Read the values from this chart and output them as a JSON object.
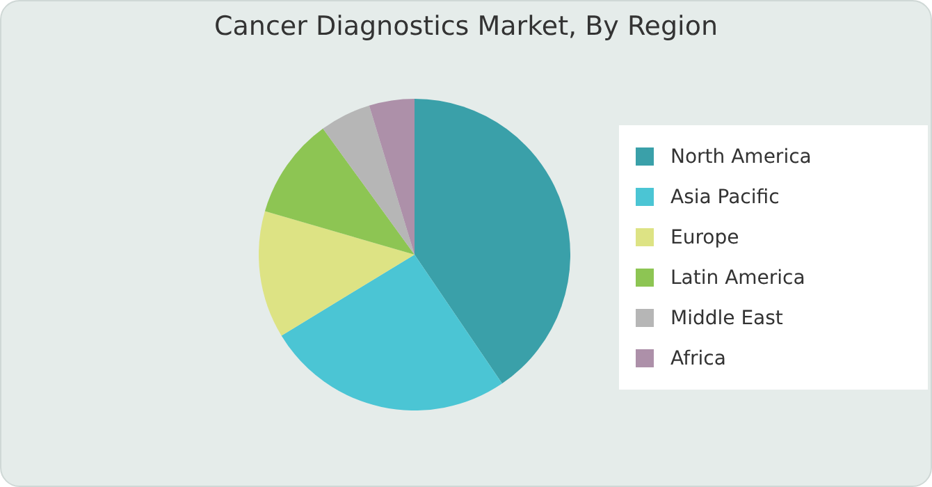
{
  "chart_data": {
    "type": "pie",
    "title": "Cancer Diagnostics Market, By Region",
    "categories": [
      "North America",
      "Asia Pacific",
      "Europe",
      "Latin America",
      "Middle East",
      "Africa"
    ],
    "values": [
      40.5,
      25.8,
      13.2,
      10.5,
      5.3,
      4.7
    ],
    "colors": [
      "#3aa0a9",
      "#4bc5d4",
      "#dde384",
      "#8dc553",
      "#b6b6b6",
      "#ad90a9"
    ],
    "legend": "right"
  }
}
